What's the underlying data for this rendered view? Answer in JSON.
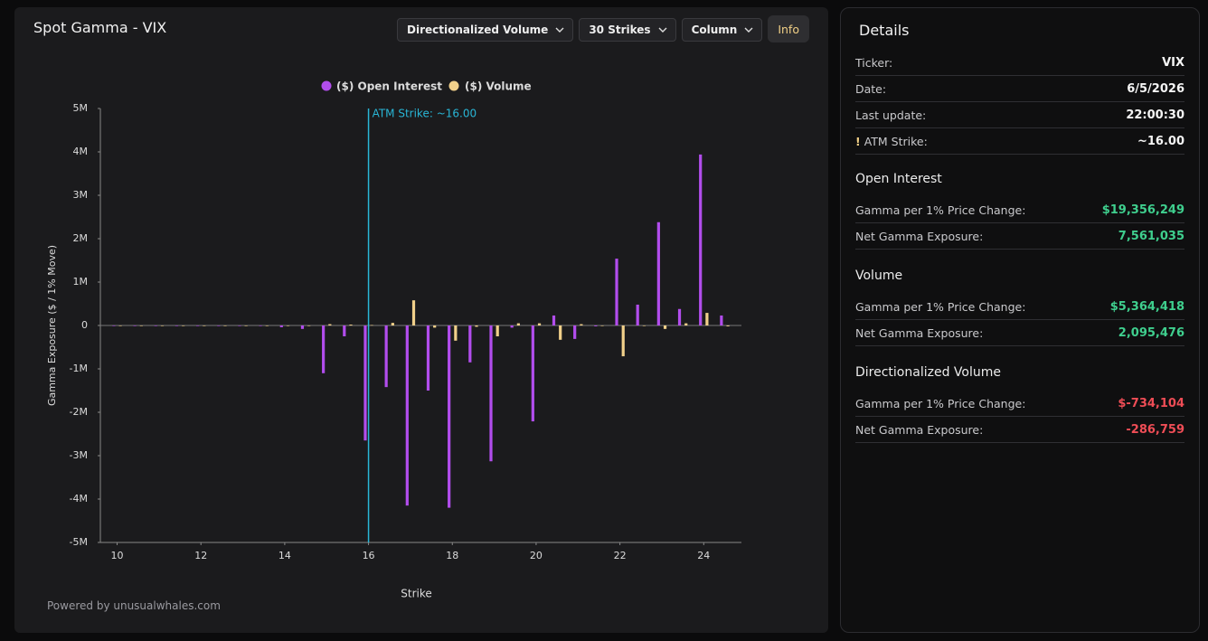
{
  "header": {
    "title": "Spot Gamma - VIX",
    "controls": [
      "Directionalized Volume",
      "30 Strikes",
      "Column"
    ],
    "info_button": "Info"
  },
  "chart_data": {
    "type": "bar",
    "x_label": "Strike",
    "y_label": "Gamma Exposure ($ / 1% Move)",
    "x": [
      10,
      10.5,
      11,
      11.5,
      12,
      12.5,
      13,
      13.5,
      14,
      14.5,
      15,
      15.5,
      16,
      16.5,
      17,
      17.5,
      18,
      18.5,
      19,
      19.5,
      20,
      20.5,
      21,
      21.5,
      22,
      22.5,
      23,
      23.5,
      24,
      24.5
    ],
    "series": [
      {
        "name": "($) Open Interest",
        "color": "#b24ded",
        "values": [
          0,
          0,
          0,
          0,
          0,
          0,
          -10000,
          0,
          -40000,
          -80000,
          -1100000,
          -250000,
          -2650000,
          -1420000,
          -4150000,
          -1500000,
          -4200000,
          -850000,
          -3130000,
          -50000,
          -2210000,
          230000,
          -310000,
          -20000,
          1540000,
          480000,
          2380000,
          380000,
          3940000,
          230000
        ]
      },
      {
        "name": "($) Volume",
        "color": "#f1d08a",
        "values": [
          0,
          0,
          0,
          0,
          0,
          0,
          0,
          0,
          0,
          0,
          30000,
          20000,
          10000,
          60000,
          580000,
          -50000,
          -350000,
          -30000,
          -250000,
          50000,
          50000,
          -330000,
          30000,
          0,
          -710000,
          0,
          -80000,
          50000,
          290000,
          -20000
        ]
      }
    ],
    "xlim": [
      9.6,
      24.9
    ],
    "ylim": [
      -5000000,
      5000000
    ],
    "xticks": [
      10,
      12,
      14,
      16,
      18,
      20,
      22,
      24
    ],
    "yticks": [
      {
        "value": -5000000,
        "label": "-5M"
      },
      {
        "value": -4000000,
        "label": "-4M"
      },
      {
        "value": -3000000,
        "label": "-3M"
      },
      {
        "value": -2000000,
        "label": "-2M"
      },
      {
        "value": -1000000,
        "label": "-1M"
      },
      0,
      {
        "value": 1000000,
        "label": "1M"
      },
      {
        "value": 2000000,
        "label": "2M"
      },
      {
        "value": 3000000,
        "label": "3M"
      },
      {
        "value": 4000000,
        "label": "4M"
      },
      {
        "value": 5000000,
        "label": "5M"
      }
    ],
    "atm_line": {
      "value": 16,
      "label": "ATM Strike: ~16.00",
      "color": "#29b6d6"
    },
    "legend": "top"
  },
  "footer": "Powered by unusualwhales.com",
  "details": {
    "title": "Details",
    "summary": [
      {
        "label": "Ticker:",
        "value": "VIX"
      },
      {
        "label": "Date:",
        "value": "6/5/2026"
      },
      {
        "label": "Last update:",
        "value": "22:00:30"
      },
      {
        "marker": "!",
        "label": "ATM Strike:",
        "value": "~16.00"
      }
    ],
    "sections": [
      {
        "title": "Open Interest",
        "rows": [
          {
            "label": "Gamma per 1% Price Change:",
            "value": "$19,356,249"
          },
          {
            "label": "Net Gamma Exposure:",
            "value": "7,561,035"
          }
        ]
      },
      {
        "title": "Volume",
        "rows": [
          {
            "label": "Gamma per 1% Price Change:",
            "value": "$5,364,418"
          },
          {
            "label": "Net Gamma Exposure:",
            "value": "2,095,476"
          }
        ]
      },
      {
        "title": "Directionalized Volume",
        "rows": [
          {
            "label": "Gamma per 1% Price Change:",
            "value": "$-734,104"
          },
          {
            "label": "Net Gamma Exposure:",
            "value": "-286,759"
          }
        ]
      }
    ]
  }
}
